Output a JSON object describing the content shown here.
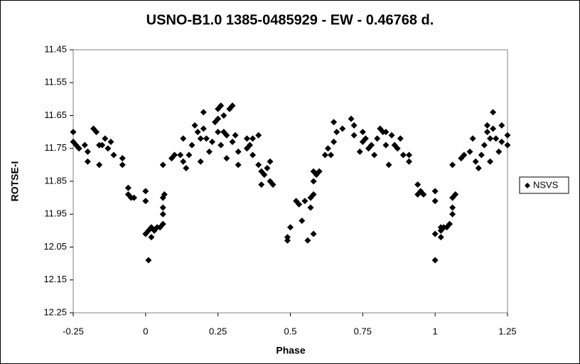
{
  "chart_data": {
    "type": "scatter",
    "title": "USNO-B1.0 1385-0485929  - EW - 0.46768 d.",
    "x_label": "Phase",
    "y_label": "ROTSE-I",
    "xlim": [
      -0.25,
      1.25
    ],
    "xticks": [
      -0.25,
      0,
      0.25,
      0.5,
      0.75,
      1,
      1.25
    ],
    "ylim": [
      12.25,
      11.45
    ],
    "yticks": [
      11.45,
      11.55,
      11.65,
      11.75,
      11.85,
      11.95,
      12.05,
      12.15,
      12.25
    ],
    "grid": false,
    "legend": "right",
    "series": [
      {
        "name": "NSVS",
        "color": "#000000",
        "marker": "diamond",
        "x": [
          -0.25,
          -0.25,
          -0.24,
          -0.23,
          -0.21,
          -0.2,
          -0.2,
          -0.18,
          -0.17,
          -0.16,
          -0.15,
          -0.16,
          -0.14,
          -0.13,
          -0.12,
          -0.11,
          -0.08,
          -0.08,
          -0.06,
          -0.06,
          -0.05,
          -0.04,
          0,
          0,
          0,
          0.01,
          0.01,
          0.02,
          0.02,
          0.03,
          0.04,
          0.05,
          0.06,
          0.06,
          0.06,
          0.06,
          0.065,
          0.06,
          0.09,
          0.1,
          0.12,
          0.13,
          0.13,
          0.14,
          0.15,
          0.16,
          0.17,
          0.18,
          0.19,
          0.19,
          0.2,
          0.2,
          0.21,
          0.22,
          0.23,
          0.24,
          0.25,
          0.25,
          0.25,
          0.26,
          0.26,
          0.27,
          0.27,
          0.28,
          0.28,
          0.29,
          0.3,
          0.3,
          0.31,
          0.32,
          0.32,
          0.35,
          0.35,
          0.36,
          0.37,
          0.37,
          0.39,
          0.39,
          0.4,
          0.4,
          0.41,
          0.42,
          0.43,
          0.43,
          0.44,
          0.49,
          0.49,
          0.5,
          0.52,
          0.53,
          0.54,
          0.55,
          0.56,
          0.57,
          0.58,
          0.57,
          0.58,
          0.58,
          0.58,
          0.59,
          0.6,
          0.62,
          0.63,
          0.64,
          0.65,
          0.65,
          0.66,
          0.68,
          0.71,
          0.72,
          0.72,
          0.74,
          0.75,
          0.75,
          0.76,
          0.77,
          0.78,
          0.79,
          0.8,
          0.81,
          0.82,
          0.83,
          0.83,
          0.84,
          0.85,
          0.86,
          0.87,
          0.88,
          0.89,
          0.91,
          0.91,
          0.94,
          0.94,
          0.95,
          0.96,
          1,
          1,
          1,
          1,
          1.02,
          1.02,
          1.02,
          1.03,
          1.04,
          1.05,
          1.06,
          1.06,
          1.06,
          1.07,
          1.06,
          1.09,
          1.1,
          1.12,
          1.13,
          1.14,
          1.15,
          1.16,
          1.17,
          1.18,
          1.18,
          1.19,
          1.19,
          1.2,
          1.2,
          1.21,
          1.22,
          1.23,
          1.23,
          1.25,
          1.25
        ],
        "values": [
          11.7,
          11.73,
          11.74,
          11.75,
          11.74,
          11.76,
          11.79,
          11.69,
          11.7,
          11.74,
          11.74,
          11.8,
          11.72,
          11.75,
          11.73,
          11.77,
          11.78,
          11.8,
          11.87,
          11.89,
          11.9,
          11.9,
          11.88,
          11.91,
          12.01,
          12.0,
          12.09,
          11.99,
          12.02,
          12.0,
          11.99,
          11.99,
          11.98,
          11.95,
          11.93,
          11.9,
          11.89,
          11.8,
          11.78,
          11.77,
          11.77,
          11.72,
          11.79,
          11.81,
          11.77,
          11.74,
          11.68,
          11.7,
          11.72,
          11.79,
          11.64,
          11.69,
          11.72,
          11.76,
          11.73,
          11.67,
          11.7,
          11.63,
          11.66,
          11.62,
          11.74,
          11.7,
          11.65,
          11.71,
          11.78,
          11.63,
          11.62,
          11.73,
          11.71,
          11.76,
          11.8,
          11.72,
          11.75,
          11.74,
          11.72,
          11.77,
          11.71,
          11.8,
          11.82,
          11.86,
          11.83,
          11.81,
          11.79,
          11.85,
          11.86,
          12.02,
          12.03,
          11.99,
          11.91,
          11.92,
          11.97,
          11.91,
          12.03,
          11.9,
          12.01,
          11.93,
          11.85,
          11.89,
          11.82,
          11.83,
          11.82,
          11.77,
          11.75,
          11.77,
          11.73,
          11.67,
          11.7,
          11.69,
          11.66,
          11.68,
          11.71,
          11.76,
          11.7,
          11.73,
          11.72,
          11.75,
          11.74,
          11.77,
          11.72,
          11.69,
          11.7,
          11.7,
          11.74,
          11.8,
          11.71,
          11.74,
          11.75,
          11.72,
          11.77,
          11.77,
          11.79,
          11.86,
          11.89,
          11.88,
          11.89,
          11.88,
          11.91,
          12.01,
          12.09,
          12.0,
          12.02,
          11.99,
          11.99,
          11.99,
          11.98,
          11.95,
          11.93,
          11.9,
          11.89,
          11.8,
          11.78,
          11.77,
          11.76,
          11.72,
          11.79,
          11.81,
          11.77,
          11.74,
          11.68,
          11.7,
          11.72,
          11.79,
          11.64,
          11.69,
          11.72,
          11.76,
          11.73,
          11.68,
          11.71,
          11.74
        ]
      }
    ]
  }
}
